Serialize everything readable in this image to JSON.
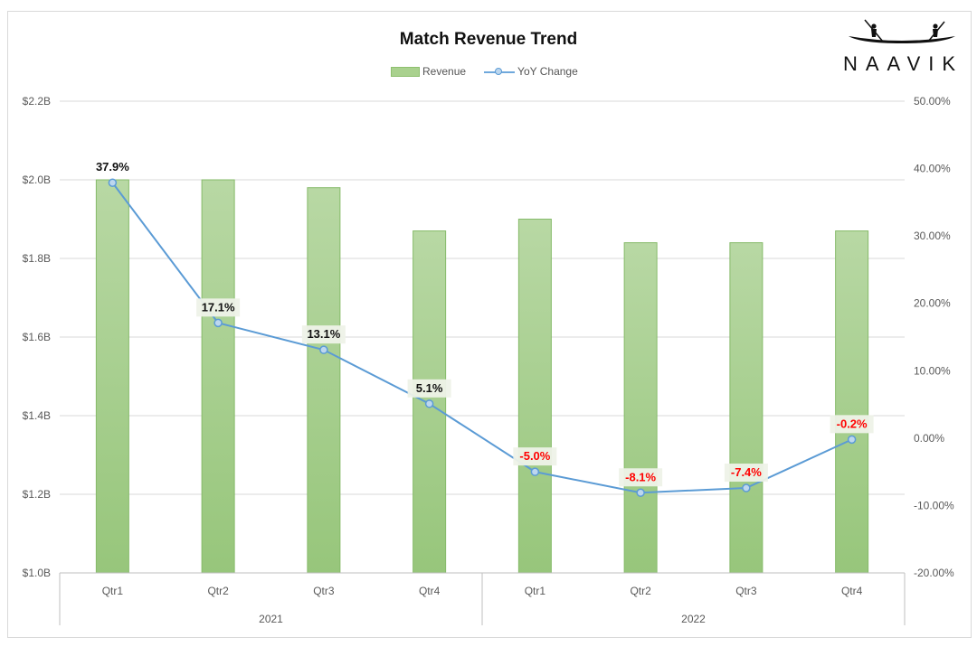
{
  "chart_data": {
    "type": "bar+line",
    "title": "Match Revenue Trend",
    "brand": "NAAVIK",
    "legend": {
      "position": "top",
      "entries": [
        "Revenue",
        "YoY Change"
      ]
    },
    "categories": [
      "Qtr1",
      "Qtr2",
      "Qtr3",
      "Qtr4",
      "Qtr1",
      "Qtr2",
      "Qtr3",
      "Qtr4"
    ],
    "groups": [
      {
        "label": "2021",
        "span": [
          0,
          3
        ]
      },
      {
        "label": "2022",
        "span": [
          4,
          7
        ]
      }
    ],
    "series": [
      {
        "name": "Revenue",
        "type": "bar",
        "axis": "left",
        "unit": "B",
        "values": [
          2.0,
          2.0,
          1.98,
          1.87,
          1.9,
          1.84,
          1.84,
          1.87
        ]
      },
      {
        "name": "YoY Change",
        "type": "line",
        "axis": "right",
        "unit": "%",
        "values": [
          37.9,
          17.1,
          13.1,
          5.1,
          -5.0,
          -8.1,
          -7.4,
          -0.2
        ],
        "labels": [
          "37.9%",
          "17.1%",
          "13.1%",
          "5.1%",
          "-5.0%",
          "-8.1%",
          "-7.4%",
          "-0.2%"
        ]
      }
    ],
    "y_left": {
      "min": 1.0,
      "max": 2.2,
      "ticks": [
        1.0,
        1.2,
        1.4,
        1.6,
        1.8,
        2.0,
        2.2
      ],
      "tick_labels": [
        "$1.0B",
        "$1.2B",
        "$1.4B",
        "$1.6B",
        "$1.8B",
        "$2.0B",
        "$2.2B"
      ]
    },
    "y_right": {
      "min": -20,
      "max": 50,
      "ticks": [
        -20,
        -10,
        0,
        10,
        20,
        30,
        40,
        50
      ],
      "tick_labels": [
        "-20.00%",
        "-10.00%",
        "0.00%",
        "10.00%",
        "20.00%",
        "30.00%",
        "40.00%",
        "50.00%"
      ]
    },
    "grid": true,
    "colors": {
      "bar_top": "#b3d49e",
      "bar_bottom": "#9ac97e",
      "bar_border": "#86bb6a",
      "line": "#5b9bd5",
      "marker_fill": "#bdd7ee",
      "label_positive": "#111111",
      "label_negative": "#ff0000",
      "grid": "#d9d9d9"
    }
  }
}
